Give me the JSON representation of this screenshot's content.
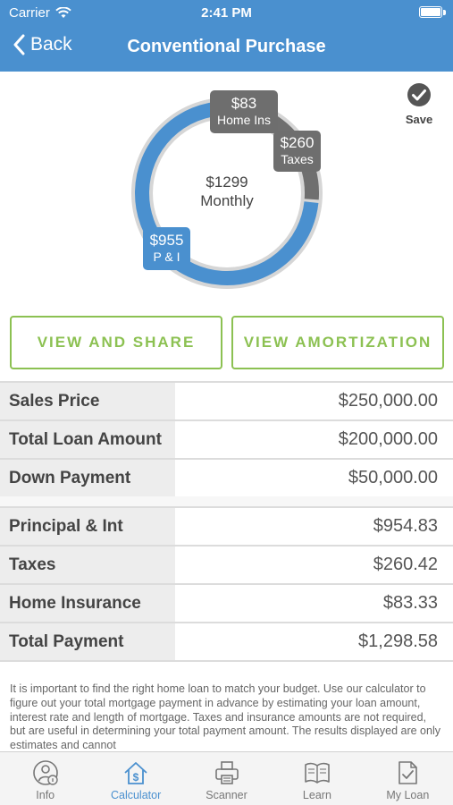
{
  "status_bar": {
    "carrier": "Carrier",
    "time": "2:41 PM"
  },
  "nav": {
    "back_label": "Back",
    "title": "Conventional Purchase"
  },
  "chart_data": {
    "type": "pie",
    "center_value": "$1299",
    "center_label": "Monthly",
    "slices": [
      {
        "name": "P & I",
        "value": 955,
        "display": "$955",
        "color": "#4a90cf"
      },
      {
        "name": "Taxes",
        "value": 260,
        "display": "$260",
        "color": "#6f6f6f"
      },
      {
        "name": "Home Ins",
        "value": 83,
        "display": "$83",
        "color": "#a8a8a8"
      }
    ]
  },
  "save": {
    "label": "Save"
  },
  "buttons": {
    "view_share": "VIEW AND SHARE",
    "view_amortization": "VIEW AMORTIZATION"
  },
  "loan_summary": [
    {
      "label": "Sales Price",
      "value": "$250,000.00"
    },
    {
      "label": "Total Loan Amount",
      "value": "$200,000.00"
    },
    {
      "label": "Down Payment",
      "value": "$50,000.00"
    }
  ],
  "payment_breakdown": [
    {
      "label": "Principal & Int",
      "value": "$954.83"
    },
    {
      "label": "Taxes",
      "value": "$260.42"
    },
    {
      "label": "Home Insurance",
      "value": "$83.33"
    },
    {
      "label": "Total Payment",
      "value": "$1,298.58"
    }
  ],
  "disclaimer": "It is important to find the right home loan to match your budget. Use our calculator to figure out your total mortgage payment in advance by estimating your loan amount, interest rate and length of mortgage. Taxes and insurance amounts are not required, but are useful in determining your total payment amount.  The results displayed are only estimates and cannot",
  "tabs": [
    {
      "label": "Info",
      "icon": "info-person-icon"
    },
    {
      "label": "Calculator",
      "icon": "house-dollar-icon",
      "active": true
    },
    {
      "label": "Scanner",
      "icon": "printer-icon"
    },
    {
      "label": "Learn",
      "icon": "book-icon"
    },
    {
      "label": "My Loan",
      "icon": "document-check-icon"
    }
  ],
  "colors": {
    "brand": "#4a90cf",
    "accent_green": "#8cc152"
  }
}
